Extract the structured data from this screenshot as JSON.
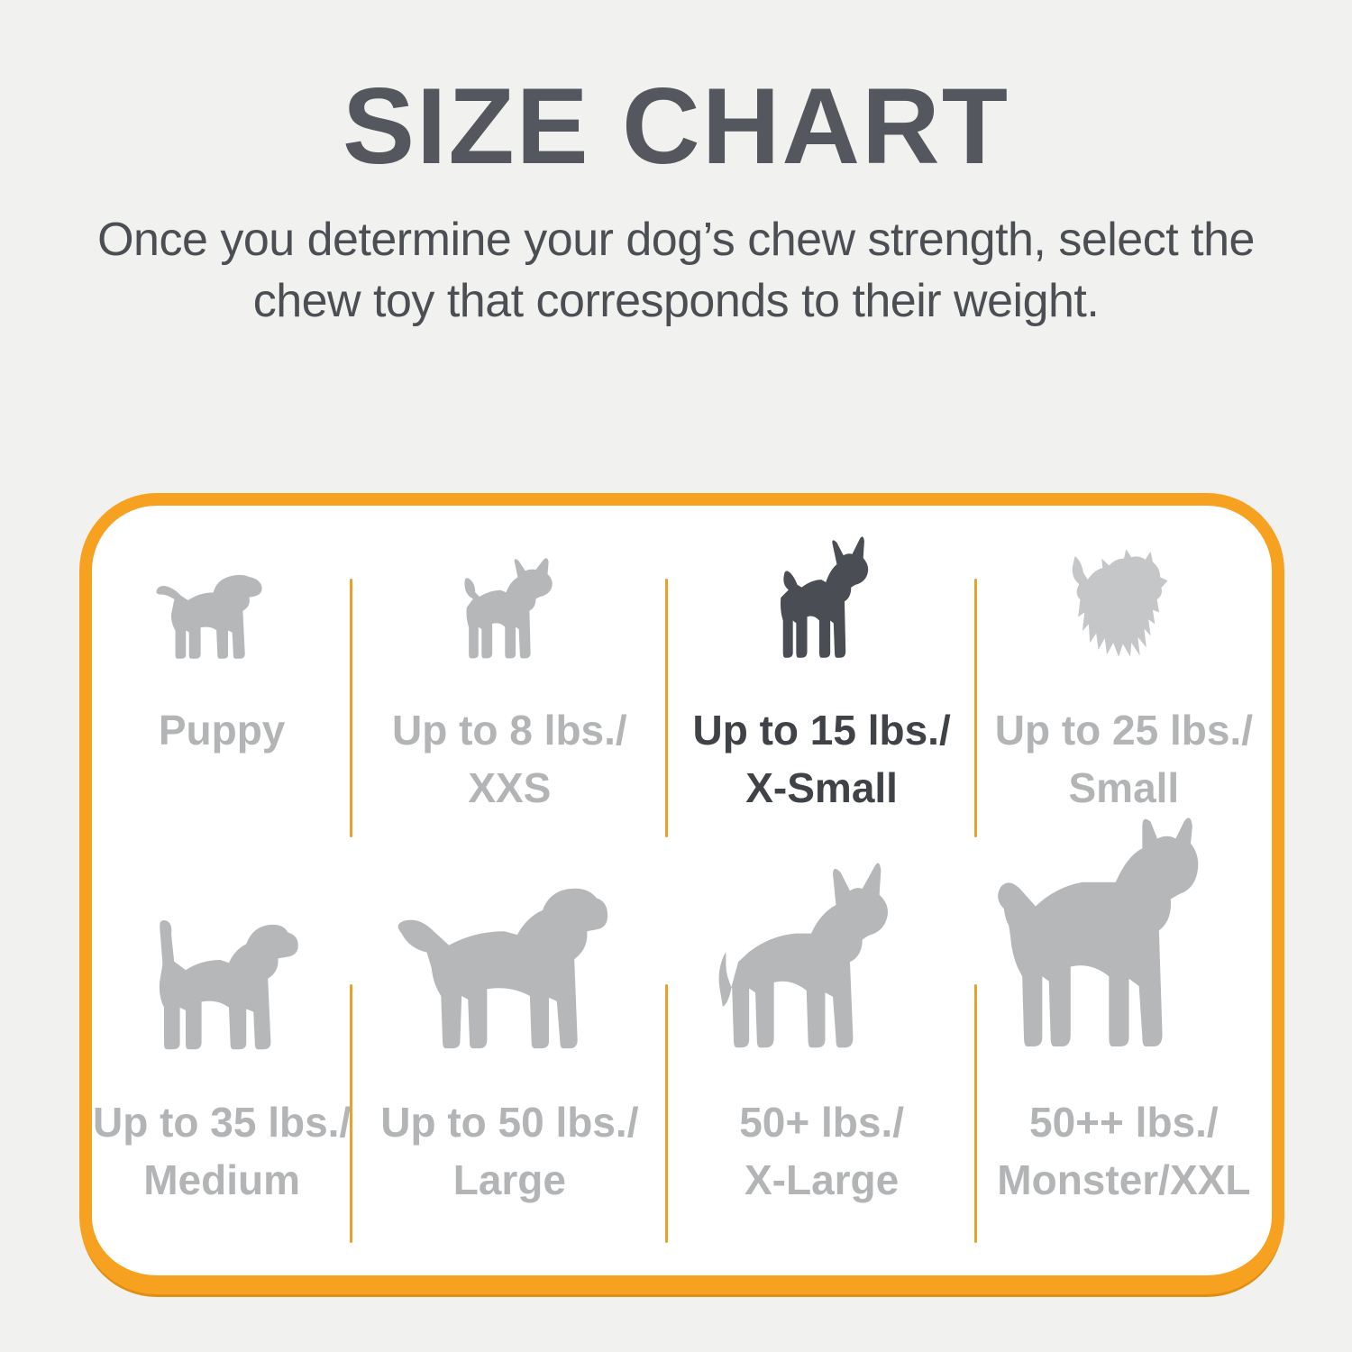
{
  "page": {
    "title": "SIZE CHART",
    "subtitle_lines": [
      "Once you determine your dog’s chew strength, select the",
      "chew toy that corresponds to their weight."
    ],
    "colors": {
      "page_bg": "#F1F1EF",
      "card_bg": "#FFFFFF",
      "card_border": "#F6A120",
      "divider": "#E9A12B",
      "bottom_bar": "#F26B27",
      "title_text": "#54575D",
      "subtitle_text": "#4B4E53",
      "label_gray": "#B2B4B6",
      "label_dark": "#3F4247",
      "dog_gray": "#B5B7B9",
      "dog_light_gray": "#C4C6C8",
      "dog_dark": "#4A4E54"
    }
  },
  "size_chart": {
    "rows": [
      {
        "cells": [
          {
            "icon": "puppy-icon",
            "lines": [
              "Puppy"
            ],
            "highlighted": false
          },
          {
            "icon": "chihuahua-icon",
            "lines": [
              "Up to 8 lbs./",
              "XXS"
            ],
            "highlighted": false
          },
          {
            "icon": "toy-dog-icon",
            "lines": [
              "Up to 15 lbs./",
              "X-Small"
            ],
            "highlighted": true
          },
          {
            "icon": "terrier-icon",
            "lines": [
              "Up to 25 lbs./",
              "Small"
            ],
            "highlighted": false
          }
        ]
      },
      {
        "cells": [
          {
            "icon": "beagle-icon",
            "lines": [
              "Up to 35 lbs./",
              "Medium"
            ],
            "highlighted": false
          },
          {
            "icon": "labrador-icon",
            "lines": [
              "Up to 50 lbs./",
              "Large"
            ],
            "highlighted": false
          },
          {
            "icon": "shepherd-icon",
            "lines": [
              "50+ lbs./",
              "X-Large"
            ],
            "highlighted": false
          },
          {
            "icon": "mastiff-icon",
            "lines": [
              "50++ lbs./",
              "Monster/XXL"
            ],
            "highlighted": false
          }
        ]
      }
    ]
  }
}
